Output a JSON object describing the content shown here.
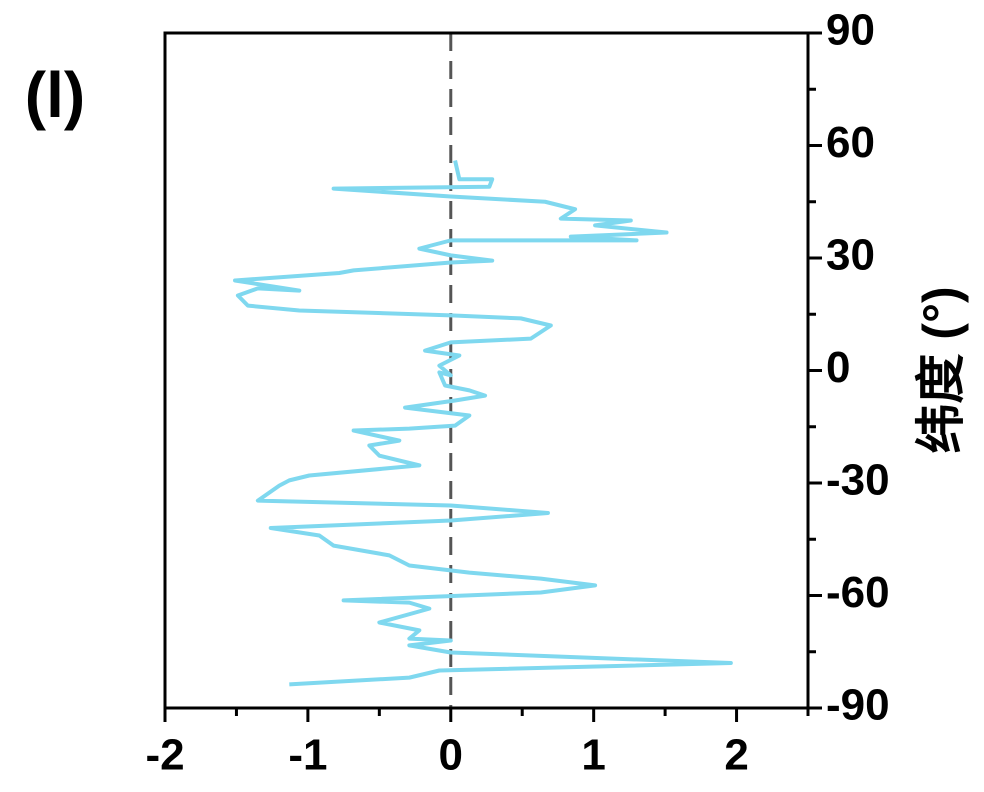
{
  "chart_data": {
    "type": "line",
    "panel_label": "(l)",
    "ylabel": "纬度 (°)",
    "xlim": [
      -2,
      2.5
    ],
    "xticks": [
      -2,
      -1,
      0,
      1,
      2
    ],
    "ylim": [
      -90,
      90
    ],
    "yticks": [
      -90,
      -60,
      -30,
      0,
      30,
      60,
      90
    ],
    "reference_line": 0,
    "y": [
      56,
      51,
      51,
      49,
      48.5,
      46.4,
      45,
      43,
      40.5,
      40,
      38.7,
      36.8,
      35.7,
      34.7,
      34.7,
      32.5,
      30.7,
      29.3,
      28.8,
      26.7,
      26,
      24,
      21.3,
      21.9,
      20,
      17.3,
      16,
      14.7,
      13.9,
      12,
      8.5,
      7.5,
      5.3,
      4,
      1.3,
      -1.3,
      -0.5,
      -4,
      -5.3,
      -6.7,
      -8,
      -9.9,
      -12,
      -14.7,
      -15.5,
      -16,
      -18.7,
      -20,
      -22.7,
      -25.3,
      -28,
      -29.3,
      -30.7,
      -34.7,
      -36,
      -38,
      -40,
      -42,
      -44,
      -46.7,
      -49.3,
      -52,
      -53.9,
      -55.5,
      -57.3,
      -59.2,
      -61.3,
      -61.9,
      -63.5,
      -67.2,
      -69.3,
      -71.5,
      -72,
      -73.3,
      -75.2,
      -78,
      -80,
      -81.9,
      -83.7
    ],
    "series": [
      {
        "color": "#7fd8ef",
        "values": [
          0.03,
          0.06,
          0.29,
          0.27,
          -0.82,
          0,
          0.66,
          0.87,
          0.77,
          1.26,
          1.01,
          1.51,
          0.84,
          1.3,
          0,
          -0.22,
          0,
          0.29,
          0,
          -0.68,
          -0.78,
          -1.51,
          -1.06,
          -1.35,
          -1.49,
          -1.42,
          -1.06,
          0,
          0.49,
          0.7,
          0.56,
          0,
          -0.18,
          0.06,
          -0.08,
          0,
          -0.08,
          -0.04,
          0.13,
          0.24,
          0.03,
          -0.32,
          0.13,
          0.03,
          -0.29,
          -0.68,
          -0.36,
          -0.57,
          -0.5,
          -0.22,
          -0.99,
          -1.13,
          -1.2,
          -1.35,
          0,
          0.68,
          0,
          -1.26,
          -0.92,
          -0.82,
          -0.43,
          -0.29,
          0.13,
          0.63,
          1.01,
          0.63,
          -0.75,
          -0.29,
          -0.15,
          -0.5,
          -0.22,
          -0.29,
          0,
          -0.29,
          0,
          1.96,
          -0.08,
          -0.29,
          -1.13
        ]
      }
    ]
  }
}
